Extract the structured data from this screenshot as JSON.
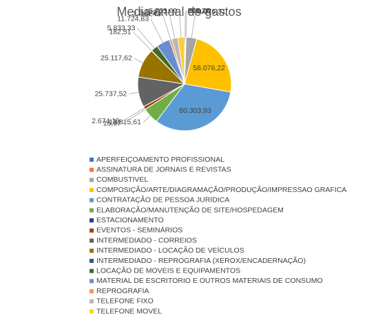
{
  "chart_data": {
    "type": "pie",
    "title": "Media anual de gastos",
    "categories": [
      "APERFEIÇOAMENTO PROFISSIONAL",
      "ASSINATURA DE JORNAIS E REVISTAS",
      "COMBUSTIVEL",
      "COMPOSIÇÃO/ARTE/DIAGRAMAÇÃO/PRODUÇÃO/IMPRESSAO GRAFICA",
      "CONTRATAÇÃO DE PESSOA JURIDICA",
      "ELABORAÇÃO/MANUTENÇÃO DE SITE/HOSPEDAGEM",
      "ESTACIONAMENTO",
      "EVENTOS - SEMINÁRIOS",
      "INTERMEDIADO - CORREIOS",
      "INTERMEDIADO - LOCAÇÃO DE VEÍCULOS",
      "INTERMEDIADO - REPROGRAFIA (XEROX/ENCADERNAÇÃO)",
      "LOCAÇÃO DE MOVEIS E EQUIPAMENTOS",
      "MATERIAL DE ESCRITORIO E OUTROS MATERIAIS DE CONSUMO",
      "REPROGRAFIA",
      "TELEFONE FIXO",
      "TELEFONE MOVEL"
    ],
    "values": [
      888.28,
      500.0,
      9076.31,
      58076.22,
      80303.93,
      13815.61,
      16.67,
      2674.19,
      25737.52,
      25117.62,
      182.51,
      5833.33,
      11724.83,
      2080.43,
      5148.77,
      5753.69
    ],
    "value_labels": [
      "888,28",
      "500,00",
      "9.076,31",
      "58.076,22",
      "80.303,93",
      "13.815,61",
      "16,67",
      "2.674,19",
      "25.737,52",
      "25.117,62",
      "182,51",
      "5.833,33",
      "11.724,83",
      "2.080,43",
      "5.148,77",
      "5.753,69"
    ],
    "colors": [
      "#4472c4",
      "#ed7d31",
      "#a5a5a5",
      "#ffc000",
      "#5b9bd5",
      "#70ad47",
      "#264478",
      "#9e480e",
      "#636363",
      "#997300",
      "#255e91",
      "#43682b",
      "#698ed0",
      "#f1975a",
      "#b7b7b7",
      "#ffcd33"
    ],
    "legend": "bottom"
  }
}
